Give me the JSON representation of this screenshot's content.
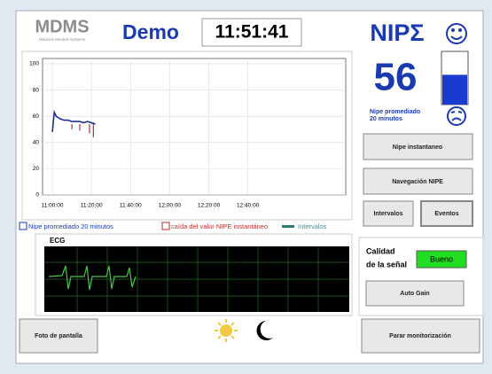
{
  "header": {
    "logo": "MDMS",
    "logo_subtitle": "Mdoloris Medical Systems",
    "title": "Demo",
    "clock": "11:51:41",
    "brand": "NIPΣ"
  },
  "nipe": {
    "value": 56,
    "label_line1": "Nipe promediado",
    "label_line2": "20 minutos"
  },
  "buttons": {
    "nipe_instantaneo": "Nipe instantaneo",
    "navegacion": "Navegación NIPE",
    "intervalos": "Intervalos",
    "eventos": "Eventos",
    "auto_gain": "Auto Gain",
    "foto": "Foto de pantalla",
    "parar": "Parar monitorización"
  },
  "legend": {
    "promediado": "Nipe promediado 20 minutos",
    "caida": "caída del valor NIPE instantáneo",
    "intervalos": "Intervalos"
  },
  "ecg": {
    "label": "ECG"
  },
  "signal": {
    "label_line1": "Calidad",
    "label_line2": "de la señal",
    "quality": "Bueno"
  },
  "chart_data": {
    "type": "line",
    "x": [
      0,
      1,
      2,
      4,
      6,
      8,
      10,
      12,
      14,
      16,
      18,
      20,
      22
    ],
    "series": [
      {
        "name": "Nipe promediado 20 minutos",
        "color": "#1f2f8f",
        "values": [
          48,
          63,
          60,
          58,
          57,
          57,
          56,
          56,
          56,
          55,
          56,
          55,
          54
        ]
      },
      {
        "name": "caída del valor NIPE instantáneo",
        "color": "#b03030",
        "x": [
          10,
          14,
          19,
          21
        ],
        "values": [
          50,
          49,
          47,
          44
        ]
      }
    ],
    "xlim": [
      -5,
      150
    ],
    "ylim": [
      0,
      104
    ],
    "xticks": [
      {
        "value": 0,
        "label": "11:00:00"
      },
      {
        "value": 20,
        "label": "11:20:00"
      },
      {
        "value": 40,
        "label": "11:40:00"
      },
      {
        "value": 60,
        "label": "12:00:00"
      },
      {
        "value": 80,
        "label": "12:20:00"
      },
      {
        "value": 100,
        "label": "12:40:00"
      }
    ],
    "yticks": [
      0,
      20,
      40,
      60,
      80,
      100
    ],
    "grid": true
  }
}
